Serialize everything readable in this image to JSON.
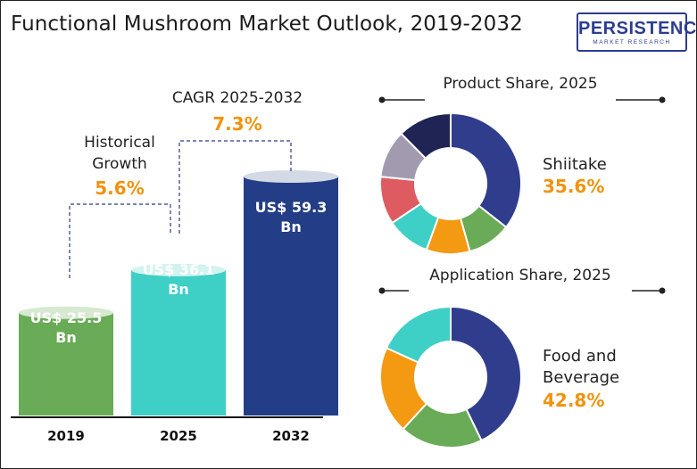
{
  "title": "Functional Mushroom Market Outlook, 2019-2032",
  "logo": {
    "main": "PERSISTENCE",
    "sub": "MARKET RESEARCH"
  },
  "colors": {
    "bar_2019": "#6aab57",
    "bar_2025": "#3ecfc6",
    "bar_2032": "#233e87",
    "accent": "#f0930f"
  },
  "annotations": {
    "historical": {
      "label_line1": "Historical",
      "label_line2": "Growth",
      "value": "5.6%"
    },
    "cagr": {
      "label": "CAGR 2025-2032",
      "value": "7.3%"
    }
  },
  "chart_data": [
    {
      "type": "bar",
      "categories": [
        "2019",
        "2025",
        "2032"
      ],
      "values": [
        25.5,
        36.1,
        59.3
      ],
      "value_labels": [
        [
          "US$ 25.5",
          "Bn"
        ],
        [
          "US$ 36.1",
          "Bn"
        ],
        [
          "US$ 59.3",
          "Bn"
        ]
      ]
    },
    {
      "type": "pie",
      "title": "Product Share, 2025",
      "highlight": {
        "label": "Shiitake",
        "value": "35.6%"
      },
      "slices": [
        {
          "value": 35.6,
          "color": "#2f3d8c"
        },
        {
          "value": 10,
          "color": "#6aab57"
        },
        {
          "value": 10,
          "color": "#f39a12"
        },
        {
          "value": 10,
          "color": "#3ecfc6"
        },
        {
          "value": 11,
          "color": "#df5b62"
        },
        {
          "value": 11,
          "color": "#a29bb0"
        },
        {
          "value": 12.4,
          "color": "#1f2454"
        }
      ]
    },
    {
      "type": "pie",
      "title": "Application Share, 2025",
      "highlight": {
        "label_line1": "Food and",
        "label_line2": "Beverage",
        "value": "42.8%"
      },
      "slices": [
        {
          "value": 42.8,
          "color": "#2f3d8c"
        },
        {
          "value": 19,
          "color": "#6aab57"
        },
        {
          "value": 20,
          "color": "#f39a12"
        },
        {
          "value": 18.2,
          "color": "#3ecfc6"
        }
      ]
    }
  ]
}
